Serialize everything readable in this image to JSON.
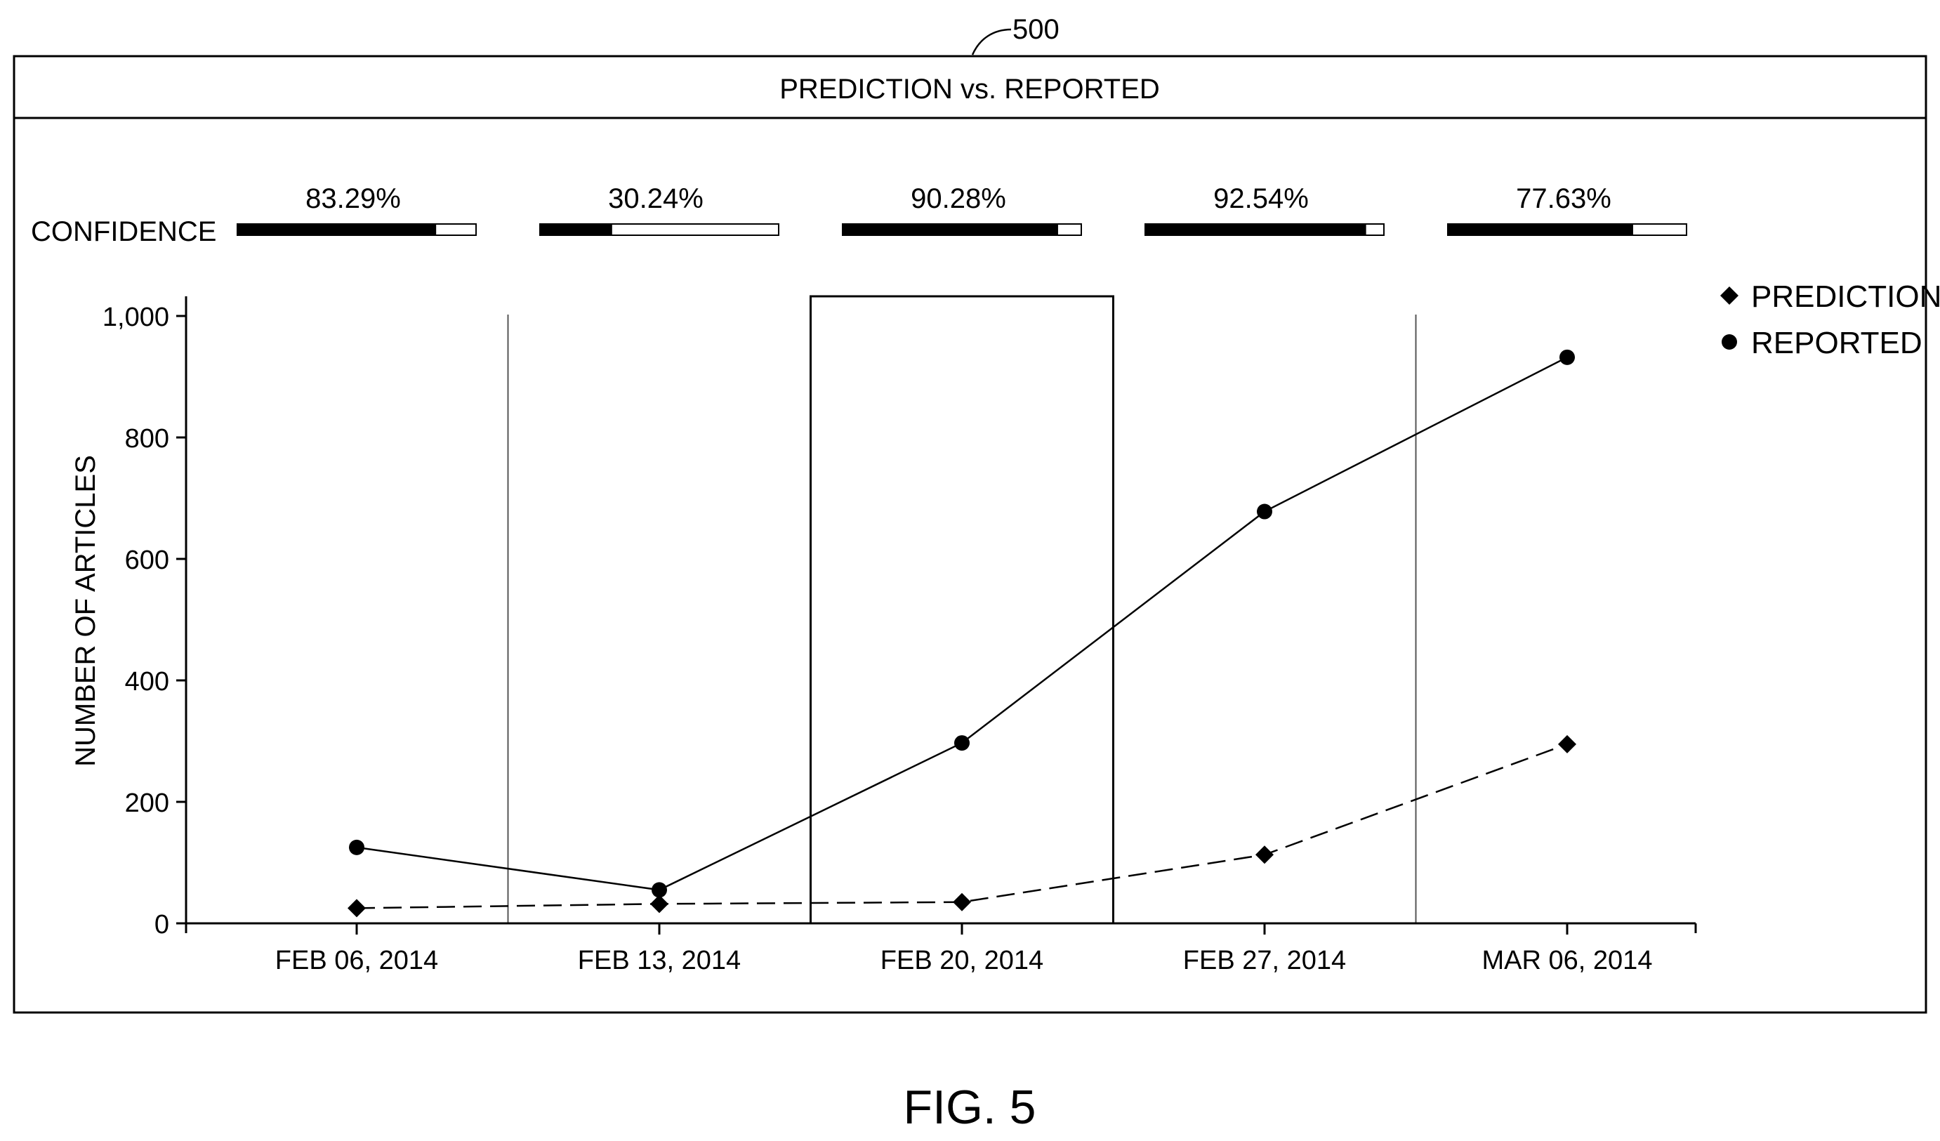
{
  "reference_numeral": "500",
  "figure_label": "FIG. 5",
  "confidence_label": "CONFIDENCE",
  "colors": {
    "ink": "#000000",
    "background": "#ffffff",
    "gridline": "#555555"
  },
  "chart_data": {
    "type": "line",
    "title": "PREDICTION vs. REPORTED",
    "ylabel": "NUMBER OF ARTICLES",
    "xlabel": "",
    "categories": [
      "FEB 06, 2014",
      "FEB 13, 2014",
      "FEB 20, 2014",
      "FEB 27, 2014",
      "MAR 06, 2014"
    ],
    "ylim": [
      0,
      1000
    ],
    "yticks": [
      0,
      200,
      400,
      600,
      800,
      1000
    ],
    "ytick_labels": [
      "0",
      "200",
      "400",
      "600",
      "800",
      "1,000"
    ],
    "grid": false,
    "highlighted_category": "FEB 20, 2014",
    "legend_position": "top-right",
    "series": [
      {
        "name": "PREDICTION",
        "marker": "diamond",
        "line_style": "dashed",
        "values": [
          25,
          32,
          35,
          113,
          295
        ]
      },
      {
        "name": "REPORTED",
        "marker": "circle",
        "line_style": "solid",
        "values": [
          125,
          55,
          297,
          678,
          932
        ]
      }
    ],
    "confidence": [
      {
        "label": "83.29%",
        "value": 0.8329
      },
      {
        "label": "30.24%",
        "value": 0.3024
      },
      {
        "label": "90.28%",
        "value": 0.9028
      },
      {
        "label": "92.54%",
        "value": 0.9254
      },
      {
        "label": "77.63%",
        "value": 0.7763
      }
    ]
  }
}
